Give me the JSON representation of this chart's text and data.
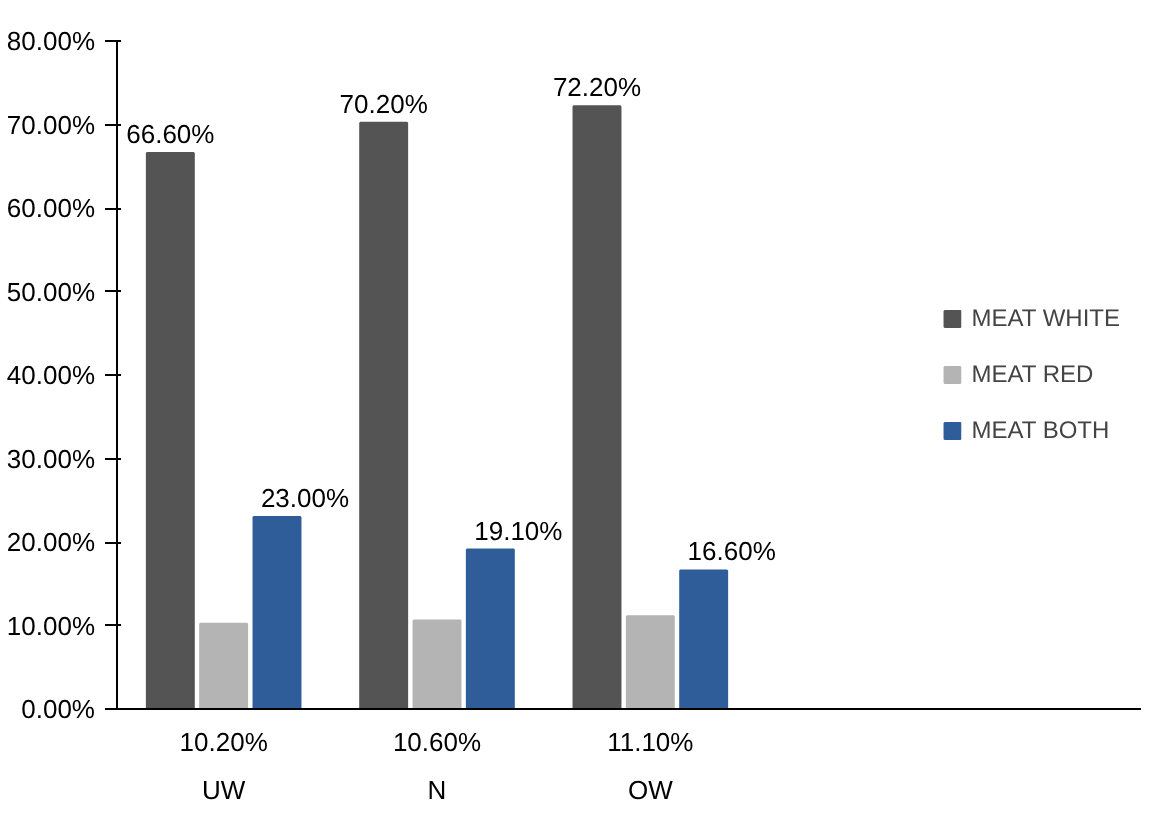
{
  "chart_data": {
    "type": "bar",
    "categories": [
      "UW",
      "N",
      "OW"
    ],
    "series": [
      {
        "name": "MEAT WHITE",
        "color": "#545454",
        "values": [
          66.6,
          70.2,
          72.2
        ],
        "value_labels": [
          "66.60%",
          "70.20%",
          "72.20%"
        ]
      },
      {
        "name": "MEAT RED",
        "color": "#b4b4b4",
        "values": [
          10.2,
          10.6,
          11.1
        ],
        "value_labels": [
          "10.20%",
          "10.60%",
          "11.10%"
        ]
      },
      {
        "name": "MEAT BOTH",
        "color": "#2f5d99",
        "values": [
          23.0,
          19.1,
          16.6
        ],
        "value_labels": [
          "23.00%",
          "19.10%",
          "16.60%"
        ]
      }
    ],
    "ylim": [
      0,
      80
    ],
    "yticks": [
      {
        "value": 0,
        "label": "0.00%"
      },
      {
        "value": 10,
        "label": "10.00%"
      },
      {
        "value": 20,
        "label": "20.00%"
      },
      {
        "value": 30,
        "label": "30.00%"
      },
      {
        "value": 40,
        "label": "40.00%"
      },
      {
        "value": 50,
        "label": "50.00%"
      },
      {
        "value": 60,
        "label": "60.00%"
      },
      {
        "value": 70,
        "label": "70.00%"
      },
      {
        "value": 80,
        "label": "80.00%"
      }
    ],
    "grid": false,
    "legend": "right"
  }
}
